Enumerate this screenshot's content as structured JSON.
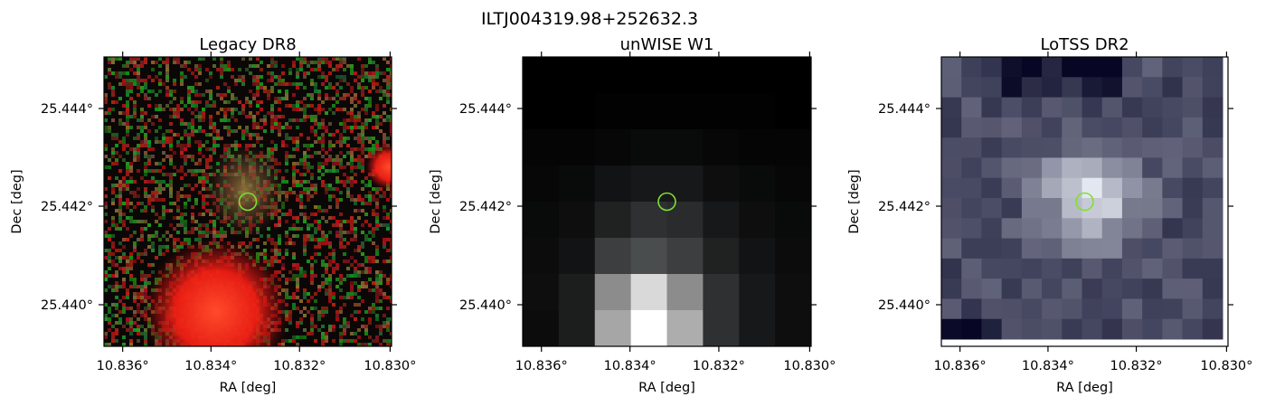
{
  "figure": {
    "suptitle": "ILTJ004319.98+252632.3"
  },
  "panels": [
    {
      "id": "legacy",
      "title": "Legacy DR8",
      "xlabel": "RA [deg]",
      "ylabel": "Dec [deg]",
      "xticks": [
        "10.836°",
        "10.834°",
        "10.832°",
        "10.830°"
      ],
      "yticks": [
        "25.444°",
        "25.442°",
        "25.440°"
      ],
      "image_style": "rgb-noise-red-sources"
    },
    {
      "id": "unwise",
      "title": "unWISE W1",
      "xlabel": "RA [deg]",
      "ylabel": "Dec [deg]",
      "xticks": [
        "10.836°",
        "10.834°",
        "10.832°",
        "10.830°"
      ],
      "yticks": [
        "25.444°",
        "25.442°",
        "25.440°"
      ],
      "image_style": "grayscale-coarse-pixels"
    },
    {
      "id": "lotss",
      "title": "LoTSS DR2",
      "xlabel": "RA [deg]",
      "ylabel": "Dec [deg]",
      "xticks": [
        "10.836°",
        "10.834°",
        "10.832°",
        "10.830°"
      ],
      "yticks": [
        "25.444°",
        "25.442°",
        "25.440°"
      ],
      "image_style": "bone-colormap-pixels"
    }
  ],
  "marker": {
    "shape": "circle",
    "color": "#7fe030"
  }
}
